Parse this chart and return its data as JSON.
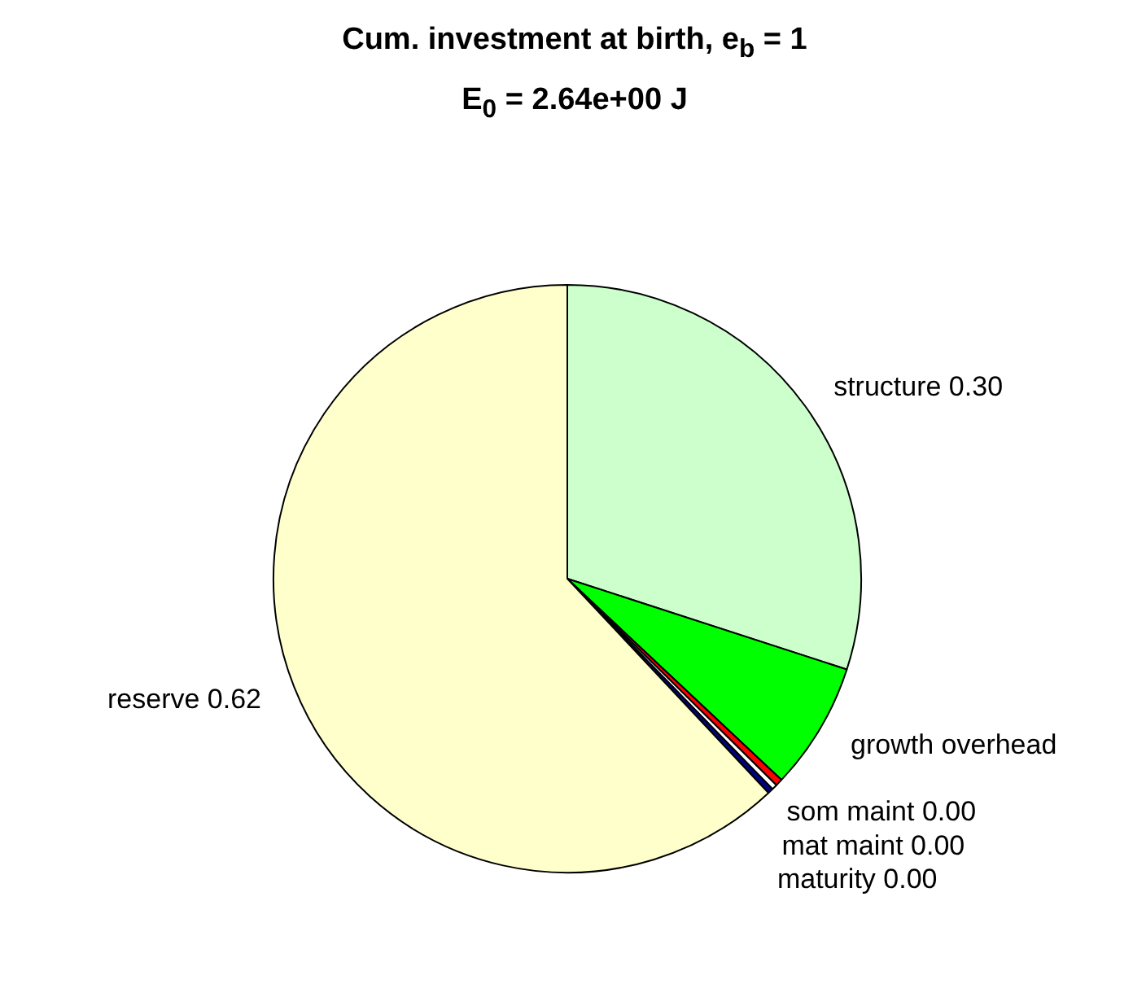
{
  "chart_data": {
    "type": "pie",
    "title": "Cum. investment at birth, e$_{b}$ = 1",
    "subtitle": "E$_{0}$ = 2.64e+00 J",
    "categories": [
      "structure",
      "growth overhead",
      "som maint",
      "mat maint",
      "maturity",
      "reserve"
    ],
    "values": [
      0.3,
      0.07,
      0.004,
      0.003,
      0.003,
      0.62
    ],
    "colors": [
      "#ccffcc",
      "#00ff00",
      "#ff0000",
      "#ffffff",
      "#000080",
      "#ffffcc"
    ],
    "value_labels": [
      "0.30",
      null,
      "0.00",
      "0.00",
      "0.00",
      "0.62"
    ]
  }
}
